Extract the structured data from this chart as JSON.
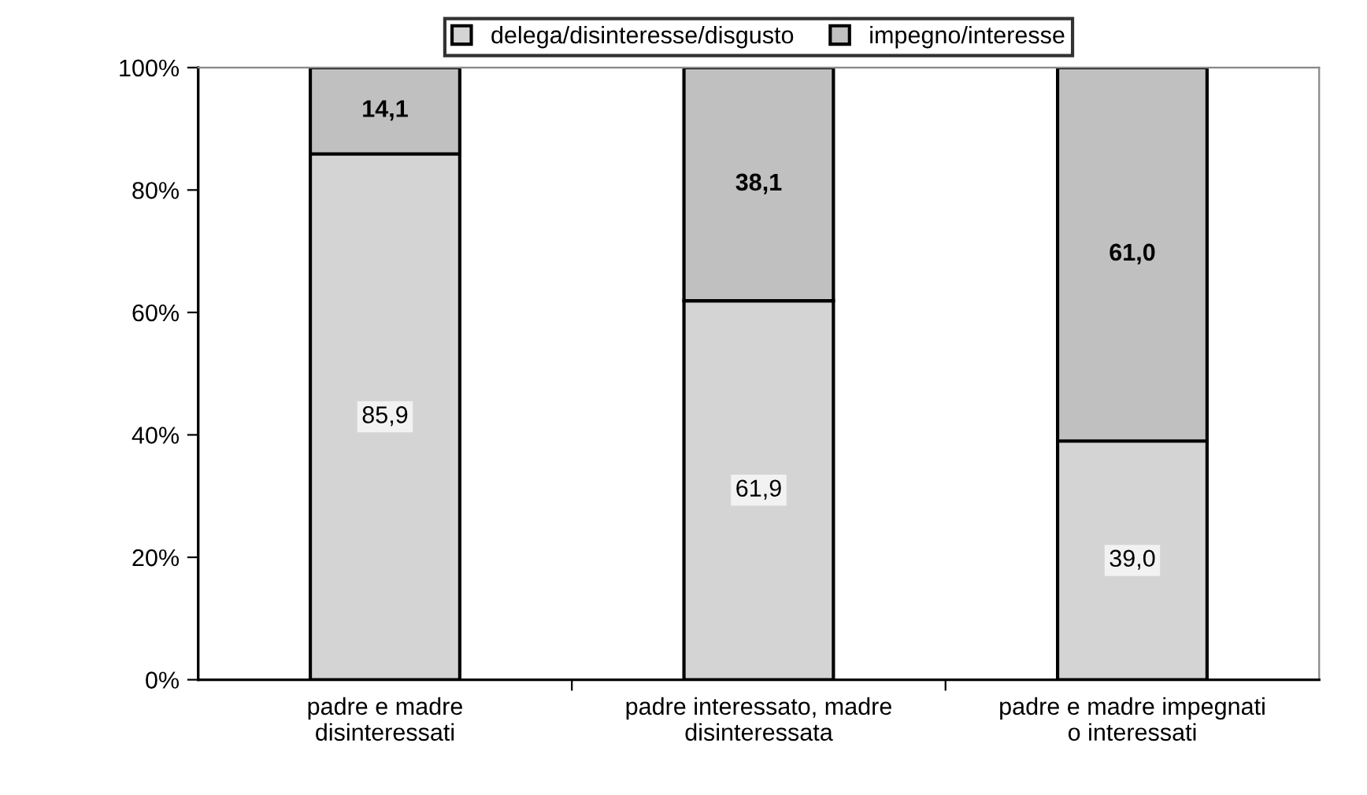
{
  "chart_data": {
    "type": "bar",
    "stacked": true,
    "categories": [
      "padre e madre\ndisinteressati",
      "padre interessato, madre\ndisinteressata",
      "padre e madre impegnati\no interessati"
    ],
    "series": [
      {
        "name": "delega/disinteresse/disgusto",
        "color": "#d4d4d4",
        "values": [
          85.9,
          61.9,
          39.0
        ],
        "value_labels": [
          "85,9",
          "61,9",
          "39,0"
        ]
      },
      {
        "name": "impegno/interesse",
        "color": "#c0c0c0",
        "values": [
          14.1,
          38.1,
          61.0
        ],
        "value_labels": [
          "14,1",
          "38,1",
          "61,0"
        ]
      }
    ],
    "ylim": [
      0,
      100
    ],
    "yticks": [
      {
        "value": 0,
        "label": "0%"
      },
      {
        "value": 20,
        "label": "20%"
      },
      {
        "value": 40,
        "label": "40%"
      },
      {
        "value": 60,
        "label": "60%"
      },
      {
        "value": 80,
        "label": "80%"
      },
      {
        "value": 100,
        "label": "100%"
      }
    ],
    "grid": false,
    "legend": "top"
  }
}
